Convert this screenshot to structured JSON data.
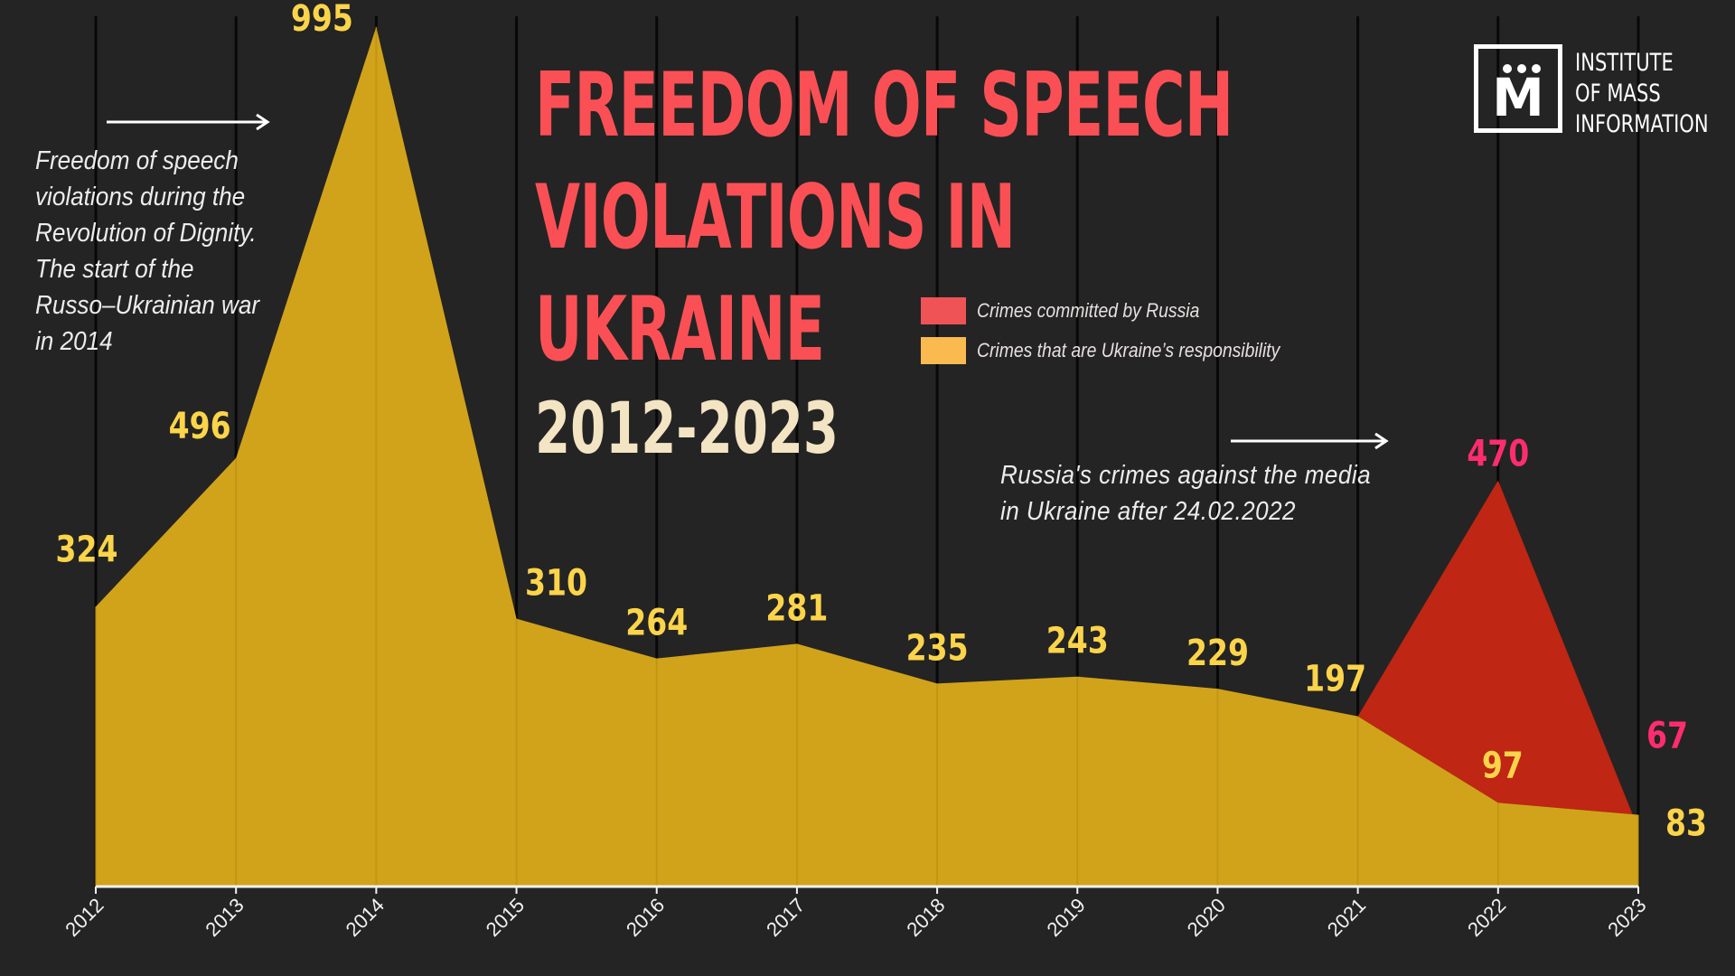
{
  "title": {
    "lines": [
      "FREEDOM OF SPEECH",
      "VIOLATIONS IN",
      "UKRAINE"
    ],
    "years": "2012-2023"
  },
  "logo": {
    "mark": "M",
    "lines": [
      "INSTITUTE",
      "OF MASS",
      "INFORMATION"
    ]
  },
  "legend": [
    {
      "label": "Crimes committed by Russia",
      "color": "#f05356"
    },
    {
      "label": "Crimes that are Ukraine’s responsibility",
      "color": "#fbba4f"
    }
  ],
  "annotations": {
    "left": [
      "Freedom of speech",
      "violations during the",
      "Revolution of Dignity.",
      "The start of the",
      "Russo–Ukrainian war",
      "in 2014"
    ],
    "right": [
      "Russia's crimes against the media",
      "in Ukraine after 24.02.2022"
    ]
  },
  "colors": {
    "background": "#242424",
    "ukraine_area": "#d1a31b",
    "russia_area": "#bf2613",
    "ukraine_label": "#fbd44a",
    "russia_label": "#ff2d6e",
    "title": "#fa5055"
  },
  "chart_data": {
    "type": "area",
    "x": [
      "2012",
      "2013",
      "2014",
      "2015",
      "2016",
      "2017",
      "2018",
      "2019",
      "2020",
      "2021",
      "2022",
      "2023"
    ],
    "series": [
      {
        "name": "Crimes that are Ukraine’s responsibility",
        "values": [
          324,
          496,
          995,
          310,
          264,
          281,
          235,
          243,
          229,
          197,
          97,
          83
        ]
      },
      {
        "name": "Crimes committed by Russia",
        "x": [
          "2021",
          "2022",
          "2023"
        ],
        "values": [
          197,
          470,
          67
        ]
      }
    ],
    "ylim": [
      0,
      1000
    ],
    "grid": "vertical"
  }
}
